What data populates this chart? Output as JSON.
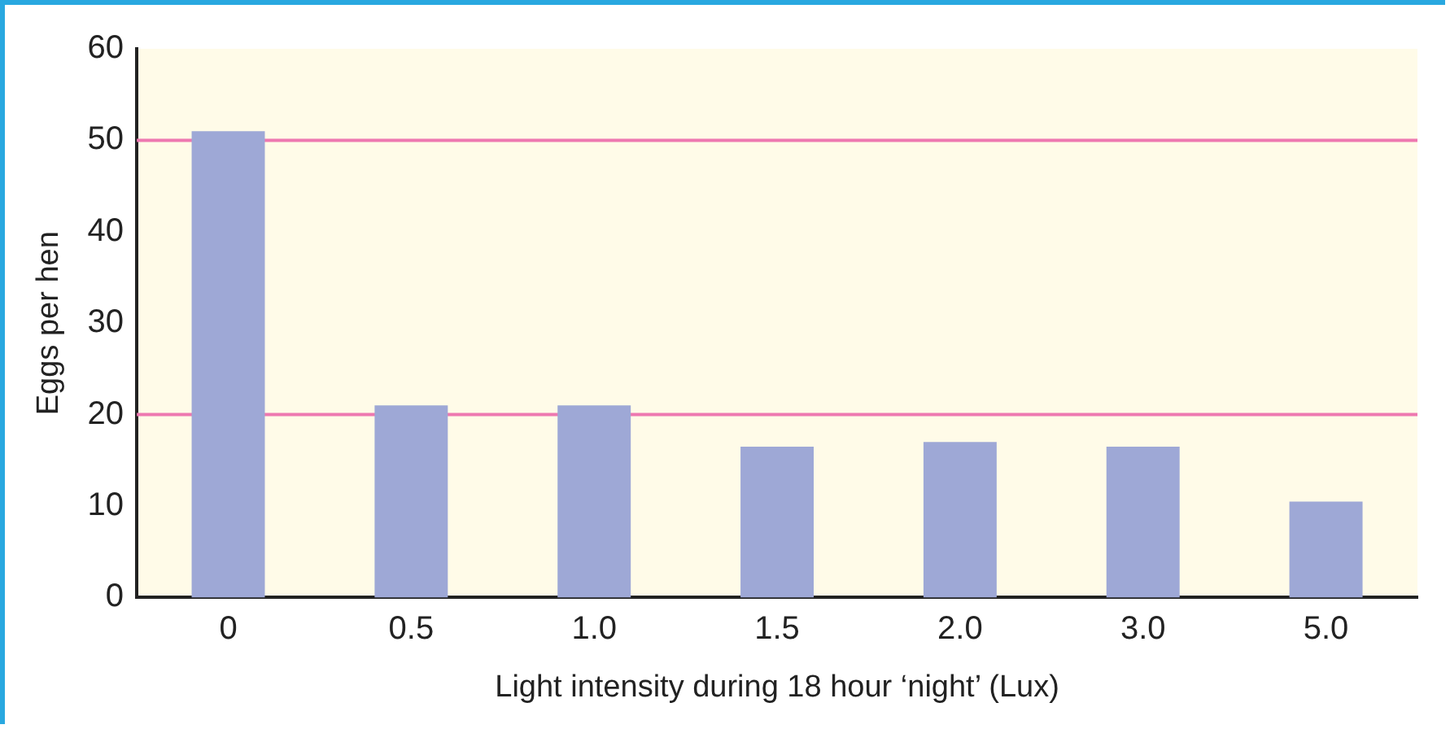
{
  "chart_data": {
    "type": "bar",
    "xlabel": "Light intensity during 18 hour ‘night’ (Lux)",
    "ylabel": "Eggs per hen",
    "categories": [
      "0",
      "0.5",
      "1.0",
      "1.5",
      "2.0",
      "3.0",
      "5.0"
    ],
    "values": [
      51,
      21,
      21,
      16.5,
      17,
      16.5,
      10.5
    ],
    "color": "#9ea8d6",
    "ylim": [
      0,
      60
    ],
    "yticks": [
      0,
      10,
      20,
      30,
      40,
      50,
      60
    ],
    "grid": false,
    "legend": false,
    "ref_lines": [
      {
        "axis": "y",
        "value": 20,
        "color": "#ee78b0"
      },
      {
        "axis": "y",
        "value": 50,
        "color": "#ee78b0"
      }
    ]
  }
}
